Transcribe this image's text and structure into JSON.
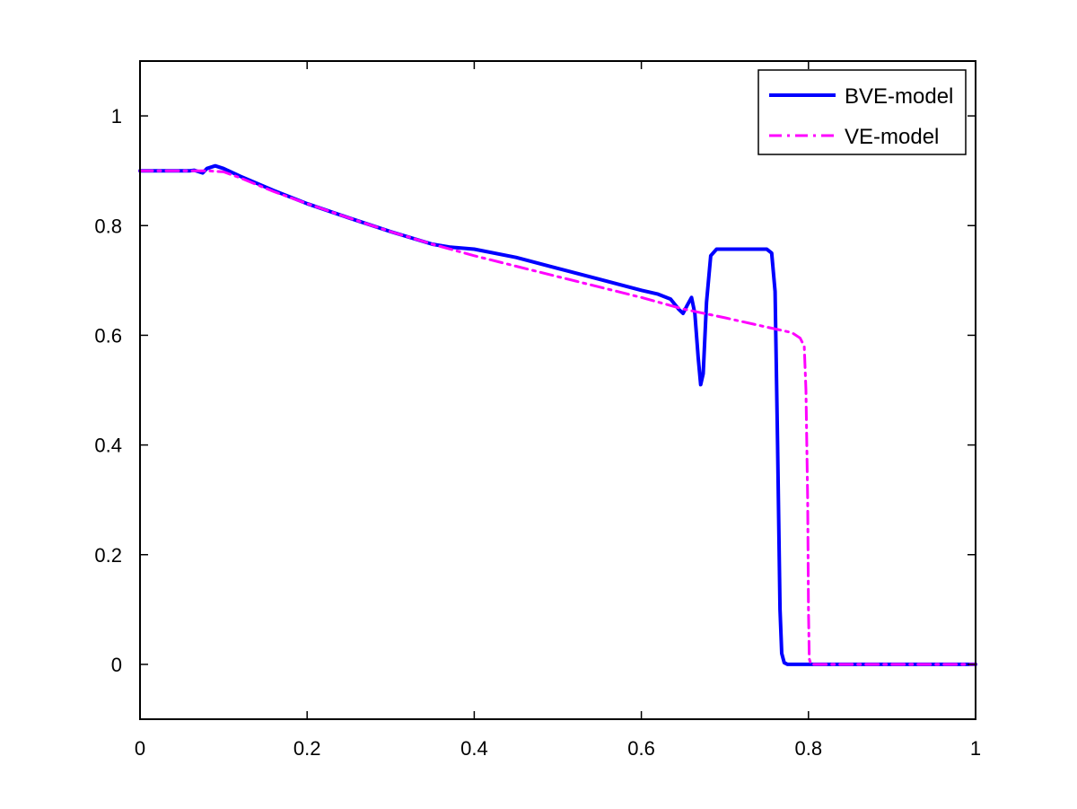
{
  "chart_data": {
    "type": "line",
    "title": "",
    "xlabel": "",
    "ylabel": "",
    "xlim": [
      0,
      1
    ],
    "ylim": [
      -0.1,
      1.1
    ],
    "xticks": [
      0,
      0.2,
      0.4,
      0.6,
      0.8,
      1
    ],
    "xtick_labels": [
      "0",
      "0.2",
      "0.4",
      "0.6",
      "0.8",
      "1"
    ],
    "yticks": [
      0,
      0.2,
      0.4,
      0.6,
      0.8,
      1
    ],
    "ytick_labels": [
      "0",
      "0.2",
      "0.4",
      "0.6",
      "0.8",
      "1"
    ],
    "grid": false,
    "legend_position": "top-right",
    "series": [
      {
        "name": "BVE-model",
        "color": "#0000ff",
        "style": "solid",
        "x": [
          0,
          0.04,
          0.06,
          0.065,
          0.075,
          0.08,
          0.09,
          0.1,
          0.12,
          0.16,
          0.2,
          0.25,
          0.3,
          0.35,
          0.37,
          0.4,
          0.45,
          0.5,
          0.55,
          0.6,
          0.62,
          0.635,
          0.645,
          0.65,
          0.655,
          0.66,
          0.664,
          0.668,
          0.671,
          0.674,
          0.678,
          0.683,
          0.69,
          0.7,
          0.72,
          0.74,
          0.75,
          0.756,
          0.76,
          0.763,
          0.766,
          0.768,
          0.771,
          0.775,
          0.78,
          0.8,
          0.85,
          0.9,
          0.95,
          1.0
        ],
        "y": [
          0.9,
          0.9,
          0.9,
          0.901,
          0.896,
          0.904,
          0.909,
          0.904,
          0.89,
          0.864,
          0.84,
          0.814,
          0.789,
          0.766,
          0.761,
          0.757,
          0.742,
          0.722,
          0.702,
          0.682,
          0.675,
          0.666,
          0.647,
          0.64,
          0.655,
          0.669,
          0.64,
          0.56,
          0.51,
          0.53,
          0.66,
          0.745,
          0.757,
          0.757,
          0.757,
          0.757,
          0.757,
          0.75,
          0.68,
          0.4,
          0.1,
          0.02,
          0.003,
          0.0,
          0.0,
          0.0,
          0.0,
          0.0,
          0.0,
          0.0
        ]
      },
      {
        "name": "VE-model",
        "color": "#ff00ff",
        "style": "dashdot",
        "x": [
          0,
          0.06,
          0.08,
          0.1,
          0.12,
          0.16,
          0.2,
          0.25,
          0.3,
          0.35,
          0.4,
          0.45,
          0.5,
          0.55,
          0.6,
          0.65,
          0.7,
          0.75,
          0.78,
          0.79,
          0.795,
          0.797,
          0.799,
          0.8,
          0.801,
          0.803,
          0.81,
          0.85,
          0.9,
          0.95,
          1.0
        ],
        "y": [
          0.9,
          0.9,
          0.9,
          0.898,
          0.887,
          0.862,
          0.84,
          0.814,
          0.789,
          0.766,
          0.745,
          0.726,
          0.707,
          0.688,
          0.669,
          0.648,
          0.632,
          0.615,
          0.605,
          0.595,
          0.58,
          0.5,
          0.3,
          0.1,
          0.01,
          0.0,
          0.0,
          0.0,
          0.0,
          0.0,
          0.0
        ]
      }
    ]
  }
}
